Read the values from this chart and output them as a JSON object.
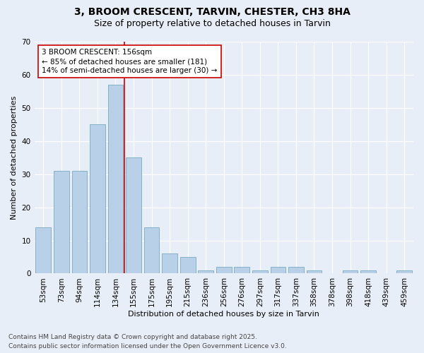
{
  "title_line1": "3, BROOM CRESCENT, TARVIN, CHESTER, CH3 8HA",
  "title_line2": "Size of property relative to detached houses in Tarvin",
  "xlabel": "Distribution of detached houses by size in Tarvin",
  "ylabel": "Number of detached properties",
  "categories": [
    "53sqm",
    "73sqm",
    "94sqm",
    "114sqm",
    "134sqm",
    "155sqm",
    "175sqm",
    "195sqm",
    "215sqm",
    "236sqm",
    "256sqm",
    "276sqm",
    "297sqm",
    "317sqm",
    "337sqm",
    "358sqm",
    "378sqm",
    "398sqm",
    "418sqm",
    "439sqm",
    "459sqm"
  ],
  "values": [
    14,
    31,
    31,
    45,
    57,
    35,
    14,
    6,
    5,
    1,
    2,
    2,
    1,
    2,
    2,
    1,
    0,
    1,
    1,
    0,
    1
  ],
  "bar_color": "#b8d0e8",
  "bar_edge_color": "#7aaabf",
  "vline_color": "#cc0000",
  "annotation_text": "3 BROOM CRESCENT: 156sqm\n← 85% of detached houses are smaller (181)\n14% of semi-detached houses are larger (30) →",
  "annotation_box_facecolor": "#ffffff",
  "annotation_box_edgecolor": "#cc0000",
  "background_color": "#e8eef7",
  "plot_bg_color": "#e8eef7",
  "ylim": [
    0,
    70
  ],
  "yticks": [
    0,
    10,
    20,
    30,
    40,
    50,
    60,
    70
  ],
  "footer_text": "Contains HM Land Registry data © Crown copyright and database right 2025.\nContains public sector information licensed under the Open Government Licence v3.0.",
  "title_fontsize": 10,
  "subtitle_fontsize": 9,
  "axis_label_fontsize": 8,
  "tick_fontsize": 7.5,
  "annotation_fontsize": 7.5,
  "footer_fontsize": 6.5
}
